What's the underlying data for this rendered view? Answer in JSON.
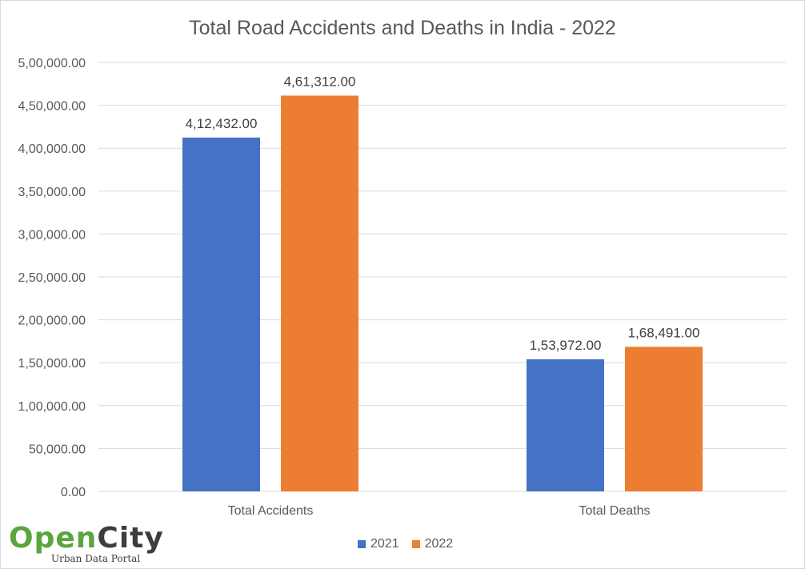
{
  "chart_data": {
    "type": "bar",
    "title": "Total Road Accidents and Deaths in India - 2022",
    "categories": [
      "Total Accidents",
      "Total Deaths"
    ],
    "series": [
      {
        "name": "2021",
        "values": [
          412432,
          153972
        ],
        "labels": [
          "4,12,432.00",
          "1,53,972.00"
        ],
        "color": "#4472c4"
      },
      {
        "name": "2022",
        "values": [
          461312,
          168491
        ],
        "labels": [
          "4,61,312.00",
          "1,68,491.00"
        ],
        "color": "#ed7d31"
      }
    ],
    "ylim": [
      0,
      500000
    ],
    "yticks": [
      0,
      50000,
      100000,
      150000,
      200000,
      250000,
      300000,
      350000,
      400000,
      450000,
      500000
    ],
    "ytick_labels": [
      "0.00",
      "50,000.00",
      "1,00,000.00",
      "1,50,000.00",
      "2,00,000.00",
      "2,50,000.00",
      "3,00,000.00",
      "3,50,000.00",
      "4,00,000.00",
      "4,50,000.00",
      "5,00,000.00"
    ],
    "xlabel": "",
    "ylabel": "",
    "grid": true,
    "legend_position": "bottom"
  },
  "logo": {
    "word_open": "Open",
    "word_city": "City",
    "tagline": "Urban Data Portal"
  }
}
